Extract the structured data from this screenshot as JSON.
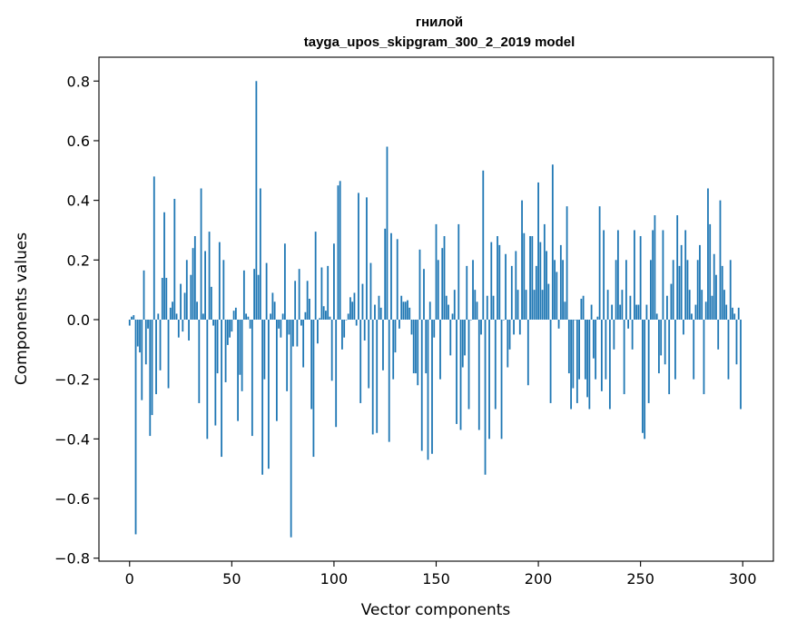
{
  "chart_data": {
    "type": "bar",
    "title": "гнилой",
    "subtitle": "tayga_upos_skipgram_300_2_2019 model",
    "xlabel": "Vector components",
    "ylabel": "Components values",
    "xlim": [
      -15,
      315
    ],
    "ylim": [
      -0.81,
      0.88
    ],
    "xticks": [
      0,
      50,
      100,
      150,
      200,
      250,
      300
    ],
    "xtick_labels": [
      "0",
      "50",
      "100",
      "150",
      "200",
      "250",
      "300"
    ],
    "yticks": [
      -0.8,
      -0.6,
      -0.4,
      -0.2,
      0.0,
      0.2,
      0.4,
      0.6,
      0.8
    ],
    "ytick_labels": [
      "−0.8",
      "−0.6",
      "−0.4",
      "−0.2",
      "0.0",
      "0.2",
      "0.4",
      "0.6",
      "0.8"
    ],
    "bar_color": "#1f77b4",
    "grid": false,
    "x": [
      0,
      1,
      2,
      3,
      4,
      5,
      6,
      7,
      8,
      9,
      10,
      11,
      12,
      13,
      14,
      15,
      16,
      17,
      18,
      19,
      20,
      21,
      22,
      23,
      24,
      25,
      26,
      27,
      28,
      29,
      30,
      31,
      32,
      33,
      34,
      35,
      36,
      37,
      38,
      39,
      40,
      41,
      42,
      43,
      44,
      45,
      46,
      47,
      48,
      49,
      50,
      51,
      52,
      53,
      54,
      55,
      56,
      57,
      58,
      59,
      60,
      61,
      62,
      63,
      64,
      65,
      66,
      67,
      68,
      69,
      70,
      71,
      72,
      73,
      74,
      75,
      76,
      77,
      78,
      79,
      80,
      81,
      82,
      83,
      84,
      85,
      86,
      87,
      88,
      89,
      90,
      91,
      92,
      93,
      94,
      95,
      96,
      97,
      98,
      99,
      100,
      101,
      102,
      103,
      104,
      105,
      106,
      107,
      108,
      109,
      110,
      111,
      112,
      113,
      114,
      115,
      116,
      117,
      118,
      119,
      120,
      121,
      122,
      123,
      124,
      125,
      126,
      127,
      128,
      129,
      130,
      131,
      132,
      133,
      134,
      135,
      136,
      137,
      138,
      139,
      140,
      141,
      142,
      143,
      144,
      145,
      146,
      147,
      148,
      149,
      150,
      151,
      152,
      153,
      154,
      155,
      156,
      157,
      158,
      159,
      160,
      161,
      162,
      163,
      164,
      165,
      166,
      167,
      168,
      169,
      170,
      171,
      172,
      173,
      174,
      175,
      176,
      177,
      178,
      179,
      180,
      181,
      182,
      183,
      184,
      185,
      186,
      187,
      188,
      189,
      190,
      191,
      192,
      193,
      194,
      195,
      196,
      197,
      198,
      199,
      200,
      201,
      202,
      203,
      204,
      205,
      206,
      207,
      208,
      209,
      210,
      211,
      212,
      213,
      214,
      215,
      216,
      217,
      218,
      219,
      220,
      221,
      222,
      223,
      224,
      225,
      226,
      227,
      228,
      229,
      230,
      231,
      232,
      233,
      234,
      235,
      236,
      237,
      238,
      239,
      240,
      241,
      242,
      243,
      244,
      245,
      246,
      247,
      248,
      249,
      250,
      251,
      252,
      253,
      254,
      255,
      256,
      257,
      258,
      259,
      260,
      261,
      262,
      263,
      264,
      265,
      266,
      267,
      268,
      269,
      270,
      271,
      272,
      273,
      274,
      275,
      276,
      277,
      278,
      279,
      280,
      281,
      282,
      283,
      284,
      285,
      286,
      287,
      288,
      289,
      290,
      291,
      292,
      293,
      294,
      295,
      296,
      297,
      298,
      299
    ],
    "values": [
      -0.02,
      0.01,
      0.015,
      -0.72,
      -0.09,
      -0.11,
      -0.27,
      0.165,
      -0.15,
      -0.03,
      -0.39,
      -0.32,
      0.48,
      -0.25,
      0.02,
      -0.17,
      0.14,
      0.36,
      0.14,
      -0.23,
      0.04,
      0.06,
      0.405,
      0.02,
      -0.06,
      0.12,
      -0.04,
      0.09,
      0.2,
      -0.07,
      0.15,
      0.24,
      0.28,
      0.06,
      -0.28,
      0.44,
      0.02,
      0.23,
      -0.4,
      0.295,
      0.11,
      -0.02,
      -0.355,
      -0.18,
      0.26,
      -0.46,
      0.2,
      -0.21,
      -0.085,
      -0.06,
      -0.04,
      0.03,
      0.04,
      -0.34,
      -0.185,
      -0.24,
      0.165,
      0.02,
      0.01,
      -0.03,
      -0.39,
      0.17,
      0.8,
      0.15,
      0.44,
      -0.52,
      -0.2,
      0.19,
      -0.5,
      0.02,
      0.09,
      0.06,
      -0.34,
      -0.03,
      -0.06,
      0.02,
      0.255,
      -0.24,
      -0.05,
      -0.73,
      -0.09,
      0.13,
      -0.09,
      0.17,
      -0.02,
      -0.16,
      0.025,
      0.13,
      0.07,
      -0.3,
      -0.46,
      0.295,
      -0.08,
      0.005,
      0.175,
      0.045,
      0.03,
      0.18,
      0.01,
      -0.205,
      0.255,
      -0.36,
      0.45,
      0.465,
      -0.1,
      -0.06,
      0.0,
      0.02,
      0.075,
      0.06,
      0.09,
      -0.02,
      0.425,
      -0.28,
      0.12,
      -0.07,
      0.41,
      -0.23,
      0.19,
      -0.385,
      0.05,
      -0.38,
      0.08,
      0.04,
      -0.17,
      0.305,
      0.58,
      -0.41,
      0.29,
      -0.2,
      -0.11,
      0.27,
      -0.03,
      0.08,
      0.06,
      0.06,
      0.065,
      0.04,
      -0.05,
      -0.18,
      -0.18,
      -0.22,
      0.235,
      -0.44,
      0.17,
      -0.18,
      -0.47,
      0.06,
      -0.45,
      -0.06,
      0.32,
      0.2,
      -0.2,
      0.24,
      0.28,
      0.08,
      0.05,
      -0.12,
      0.02,
      0.1,
      -0.35,
      0.32,
      -0.37,
      -0.16,
      -0.12,
      0.18,
      -0.3,
      0.0,
      0.2,
      0.1,
      0.06,
      -0.37,
      -0.05,
      0.5,
      -0.52,
      0.08,
      -0.4,
      0.26,
      0.08,
      -0.3,
      0.28,
      0.25,
      -0.4,
      0.0,
      0.22,
      -0.16,
      -0.1,
      0.18,
      -0.05,
      0.23,
      0.1,
      -0.05,
      0.4,
      0.29,
      0.1,
      -0.22,
      0.28,
      0.28,
      0.1,
      0.18,
      0.46,
      0.26,
      0.1,
      0.32,
      0.23,
      0.12,
      -0.28,
      0.52,
      0.2,
      0.16,
      -0.03,
      0.25,
      0.2,
      0.06,
      0.38,
      -0.18,
      -0.3,
      -0.23,
      0.0,
      -0.28,
      -0.2,
      0.07,
      0.08,
      -0.2,
      -0.26,
      -0.3,
      0.05,
      -0.13,
      -0.2,
      0.01,
      0.38,
      -0.24,
      0.3,
      -0.2,
      0.1,
      -0.3,
      0.05,
      -0.1,
      0.2,
      0.3,
      0.05,
      0.1,
      -0.25,
      0.2,
      -0.03,
      0.08,
      -0.1,
      0.3,
      0.05,
      0.05,
      0.28,
      -0.38,
      -0.4,
      0.05,
      -0.28,
      0.2,
      0.3,
      0.35,
      0.02,
      -0.18,
      -0.12,
      0.3,
      -0.15,
      0.08,
      -0.25,
      0.12,
      0.2,
      -0.2,
      0.35,
      0.18,
      0.25,
      -0.05,
      0.3,
      0.2,
      0.1,
      0.02,
      -0.2,
      0.05,
      0.2,
      0.25,
      0.1,
      -0.25,
      0.06,
      0.44,
      0.32,
      0.08,
      0.22,
      0.15,
      -0.1,
      0.4,
      0.18,
      0.1,
      0.05,
      -0.2,
      0.2,
      0.04,
      0.02,
      -0.15,
      0.04,
      -0.3
    ]
  }
}
